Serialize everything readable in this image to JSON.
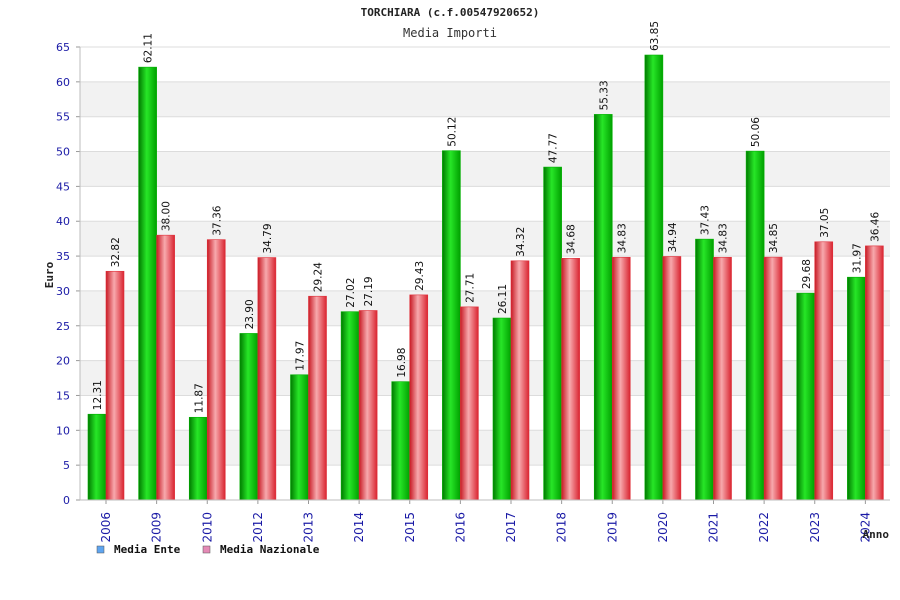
{
  "chart_data": {
    "type": "bar",
    "title": "TORCHIARA (c.f.00547920652)",
    "subtitle": "Media Importi",
    "xlabel": "Anno",
    "ylabel": "Euro",
    "categories": [
      "2006",
      "2009",
      "2010",
      "2012",
      "2013",
      "2014",
      "2015",
      "2016",
      "2017",
      "2018",
      "2019",
      "2020",
      "2021",
      "2022",
      "2023",
      "2024"
    ],
    "series": [
      {
        "name": "Media Ente",
        "values": [
          12.31,
          62.11,
          11.87,
          23.9,
          17.97,
          27.02,
          16.98,
          50.12,
          26.11,
          47.77,
          55.33,
          63.85,
          37.43,
          50.06,
          29.68,
          31.97
        ],
        "labels": [
          "12.31",
          "62.11",
          "11.87",
          "23.90",
          "17.97",
          "27.02",
          "16.98",
          "50.12",
          "26.11",
          "47.77",
          "55.33",
          "63.85",
          "37.43",
          "50.06",
          "29.68",
          "31.97"
        ]
      },
      {
        "name": "Media Nazionale",
        "values": [
          32.82,
          38.0,
          37.36,
          34.79,
          29.24,
          27.19,
          29.43,
          27.71,
          34.32,
          34.68,
          34.83,
          34.94,
          34.83,
          34.85,
          37.05,
          36.46
        ],
        "labels": [
          "32.82",
          "38.00",
          "37.36",
          "34.79",
          "29.24",
          "27.19",
          "29.43",
          "27.71",
          "34.32",
          "34.68",
          "34.83",
          "34.94",
          "34.83",
          "34.85",
          "37.05",
          "36.46"
        ]
      }
    ],
    "ylim": [
      0,
      65
    ],
    "yticks": [
      0,
      5,
      10,
      15,
      20,
      25,
      30,
      35,
      40,
      45,
      50,
      55,
      60,
      65
    ],
    "grid": true,
    "legend_position": "bottom-left",
    "legend_swatch_colors": [
      "#5ea5f0",
      "#e58ab6"
    ],
    "colors": {
      "ente": "#00b000",
      "nazionale": "#e0303a",
      "tick_text": "#1a1aa6",
      "label_text": "#111111",
      "band": "#f2f2f2"
    }
  }
}
